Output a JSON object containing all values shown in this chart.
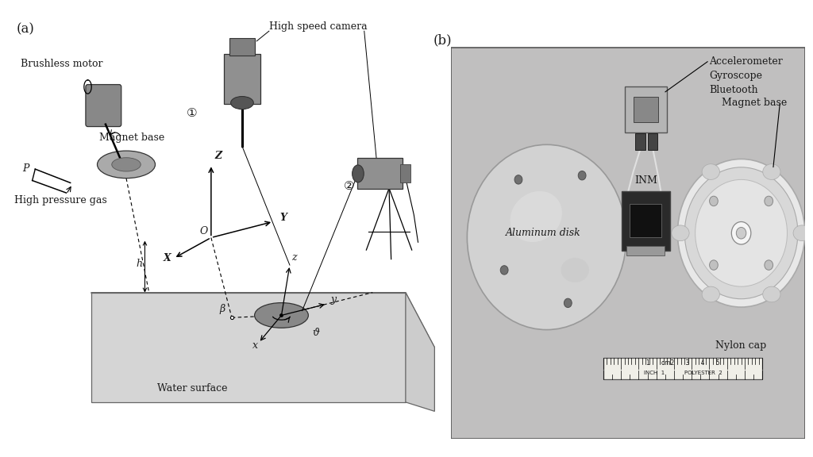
{
  "fig_width": 10.24,
  "fig_height": 5.76,
  "bg_color": "#ffffff",
  "label_a": "(a)",
  "label_b": "(b)",
  "font_size_label": 12,
  "font_size_text": 9,
  "font_size_small": 8,
  "text_color": "#1a1a1a",
  "diagram_labels": {
    "brushless_motor": "Brushless motor",
    "magnet_base": "Magnet base",
    "high_pressure_gas": "High pressure gas",
    "high_speed_camera": "High speed camera",
    "water_surface": "Water surface",
    "P": "P",
    "h": "h",
    "beta": "β",
    "vartheta": "ϑ",
    "O": "O",
    "X": "X",
    "Y": "Y",
    "Z": "Z",
    "x": "x",
    "y": "y",
    "z": "z",
    "cam1": "①",
    "cam2": "②"
  },
  "photo_labels": {
    "aluminum_disk": "Aluminum disk",
    "INM": "INM",
    "accelerometer": "Accelerometer\nGyroscope\nBluetooth",
    "magnet_base": "Magnet base",
    "nylon_cap": "Nylon cap"
  }
}
